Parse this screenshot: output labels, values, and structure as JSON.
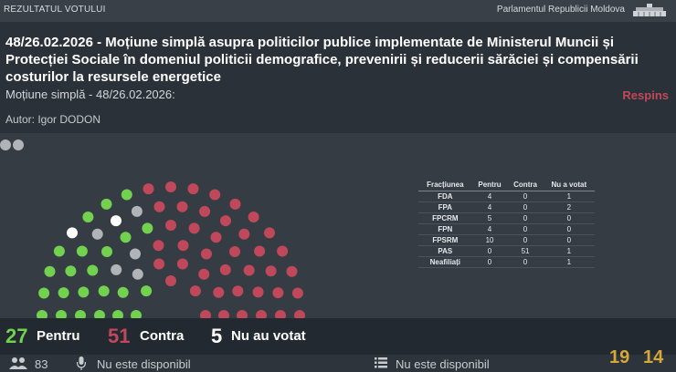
{
  "header": {
    "section_label": "REZULTATUL VOTULUI",
    "institution": "Parlamentul Republicii Moldova"
  },
  "motion": {
    "title": "48/26.02.2026 - Moțiune simplă asupra politicilor publice implementate de Ministerul Muncii și Protecției Sociale în domeniul politicii demografice, prevenirii și reducerii sărăciei și compensării costurilor la resursele energetice",
    "subtitle": "Moțiune simplă - 48/26.02.2026:",
    "result": "Respins",
    "author": "Autor: Igor DODON"
  },
  "factions_table": {
    "headers": [
      "Fracțiunea",
      "Pentru",
      "Contra",
      "Nu a votat"
    ],
    "rows": [
      [
        "FDA",
        "4",
        "0",
        "1"
      ],
      [
        "FPA",
        "4",
        "0",
        "2"
      ],
      [
        "FPCRM",
        "5",
        "0",
        "0"
      ],
      [
        "FPN",
        "4",
        "0",
        "0"
      ],
      [
        "FPSRM",
        "10",
        "0",
        "0"
      ],
      [
        "PAS",
        "0",
        "51",
        "1"
      ],
      [
        "Neafiliați",
        "0",
        "0",
        "1"
      ]
    ]
  },
  "tally": {
    "for_count": "27",
    "for_label": "Pentru",
    "against_count": "51",
    "against_label": "Contra",
    "novote_count": "5",
    "novote_label": "Nu au votat"
  },
  "footer": {
    "attendance": "83",
    "speaker_status": "Nu este disponibil",
    "agenda_status": "Nu este disponibil"
  },
  "clock": {
    "hours": "19",
    "minutes": "14"
  },
  "colors": {
    "for": "#72d14f",
    "against": "#c0485b",
    "novote": "#b0b4b8",
    "absent_highlight": "#ffffff",
    "accent": "#d4a93a"
  },
  "icons": [
    "flag-icon",
    "users-icon",
    "microphone-icon",
    "list-icon"
  ]
}
